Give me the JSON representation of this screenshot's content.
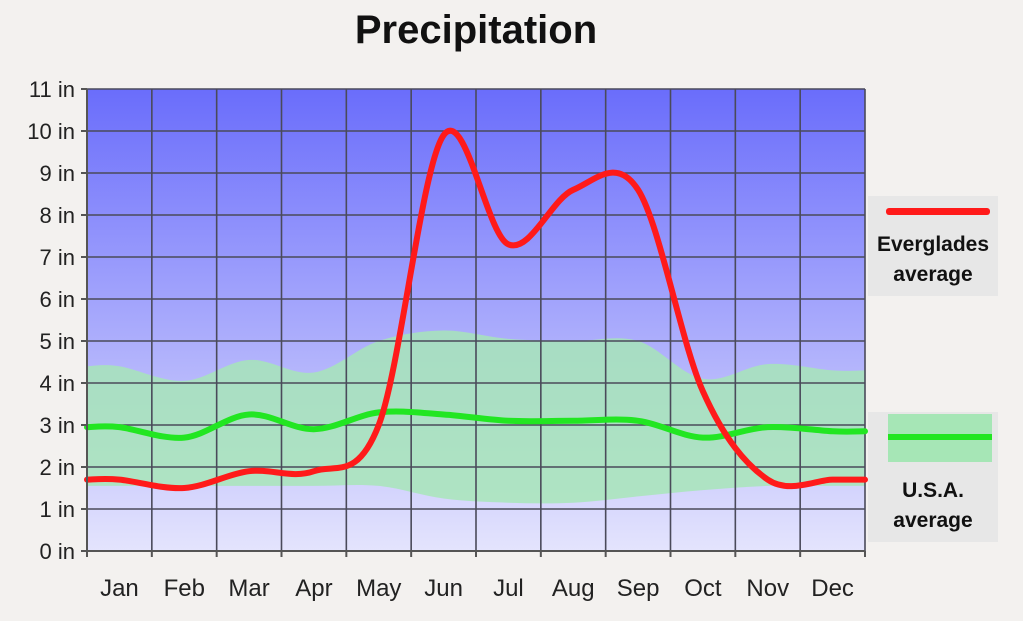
{
  "chart_data": {
    "type": "line",
    "title": "Precipitation",
    "categories": [
      "Jan",
      "Feb",
      "Mar",
      "Apr",
      "May",
      "Jun",
      "Jul",
      "Aug",
      "Sep",
      "Oct",
      "Nov",
      "Dec"
    ],
    "y_tick_labels": [
      "0 in",
      "1 in",
      "2 in",
      "3 in",
      "4 in",
      "5 in",
      "6 in",
      "7 in",
      "8 in",
      "9 in",
      "10 in",
      "11 in"
    ],
    "ylim": [
      0,
      11
    ],
    "grid": true,
    "legend_position": "right",
    "series": [
      {
        "name": "Everglades average",
        "color": "#ff1a1a",
        "values": [
          1.7,
          1.5,
          1.9,
          1.9,
          3.0,
          9.9,
          7.3,
          8.6,
          8.6,
          3.8,
          1.7,
          1.7
        ]
      },
      {
        "name": "U.S.A. average",
        "color": "#22e622",
        "values": [
          2.95,
          2.7,
          3.25,
          2.9,
          3.3,
          3.25,
          3.1,
          3.1,
          3.1,
          2.7,
          2.95,
          2.85
        ]
      }
    ],
    "range_band": {
      "series": "U.S.A. average",
      "color": "#a6e6b6",
      "upper": [
        4.4,
        4.05,
        4.55,
        4.25,
        5.0,
        5.25,
        5.05,
        5.0,
        5.0,
        4.1,
        4.45,
        4.3
      ],
      "lower": [
        1.55,
        1.55,
        1.55,
        1.55,
        1.55,
        1.25,
        1.15,
        1.15,
        1.3,
        1.45,
        1.55,
        1.55
      ]
    },
    "background_gradient": [
      "#6a6dfb",
      "#e4e4fd"
    ]
  }
}
